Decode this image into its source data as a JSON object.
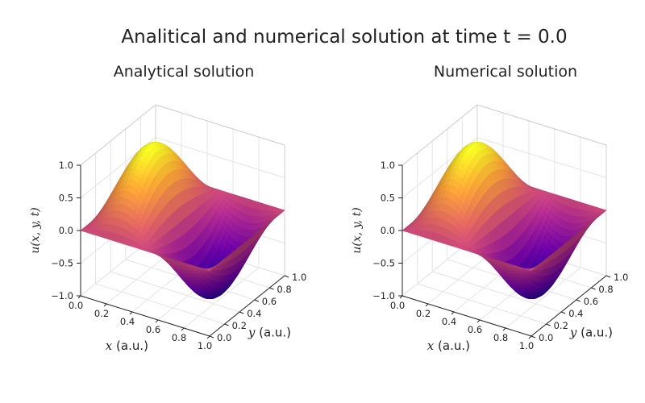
{
  "figure": {
    "title": "Analitical and numerical solution at time t = 0.0"
  },
  "chart_data": [
    {
      "type": "surface",
      "title": "Analytical solution",
      "xlabel_var": "x",
      "xlabel_unit": "(a.u.)",
      "ylabel_var": "y",
      "ylabel_unit": "(a.u.)",
      "zlabel": "u(x, y, t)",
      "xlim": [
        0.0,
        1.0
      ],
      "ylim": [
        0.0,
        1.0
      ],
      "zlim": [
        -1.0,
        1.0
      ],
      "x_ticks": [
        "0.0",
        "0.2",
        "0.4",
        "0.6",
        "0.8",
        "1.0"
      ],
      "y_ticks": [
        "0.0",
        "0.2",
        "0.4",
        "0.6",
        "0.8",
        "1.0"
      ],
      "z_ticks": [
        "−1.0",
        "−0.5",
        "0.0",
        "0.5",
        "1.0"
      ],
      "z_tick_values": [
        -1.0,
        -0.5,
        0.0,
        0.5,
        1.0
      ],
      "surface_function": "sin(2*pi*x)*sin(pi*y)",
      "colormap": [
        "#0d0887",
        "#6a00a8",
        "#b12a90",
        "#e16462",
        "#fca636",
        "#f0f921"
      ],
      "grid": true
    },
    {
      "type": "surface",
      "title": "Numerical solution",
      "xlabel_var": "x",
      "xlabel_unit": "(a.u.)",
      "ylabel_var": "y",
      "ylabel_unit": "(a.u.)",
      "zlabel": "u(x, y, t)",
      "xlim": [
        0.0,
        1.0
      ],
      "ylim": [
        0.0,
        1.0
      ],
      "zlim": [
        -1.0,
        1.0
      ],
      "x_ticks": [
        "0.0",
        "0.2",
        "0.4",
        "0.6",
        "0.8",
        "1.0"
      ],
      "y_ticks": [
        "0.0",
        "0.2",
        "0.4",
        "0.6",
        "0.8",
        "1.0"
      ],
      "z_ticks": [
        "−1.0",
        "−0.5",
        "0.0",
        "0.5",
        "1.0"
      ],
      "z_tick_values": [
        -1.0,
        -0.5,
        0.0,
        0.5,
        1.0
      ],
      "surface_function": "sin(2*pi*x)*sin(pi*y)",
      "colormap": [
        "#0d0887",
        "#6a00a8",
        "#b12a90",
        "#e16462",
        "#fca636",
        "#f0f921"
      ],
      "grid": true
    }
  ]
}
